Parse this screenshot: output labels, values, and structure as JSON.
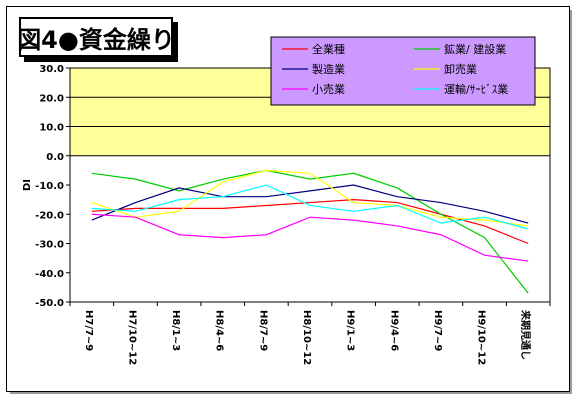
{
  "title": "図4●資金繰り",
  "chart_data": {
    "type": "line",
    "title": "図4●資金繰り",
    "ylabel": "DI",
    "ylim": [
      -50,
      30
    ],
    "yticks": [
      "30.0",
      "20.0",
      "10.0",
      "0.0",
      "-10.0",
      "-20.0",
      "-30.0",
      "-40.0",
      "-50.0"
    ],
    "ytick_values": [
      30,
      20,
      10,
      0,
      -10,
      -20,
      -30,
      -40,
      -50
    ],
    "categories": [
      "H7/7~9",
      "H7/10~12",
      "H8/1~3",
      "H8/4~6",
      "H8/7~9",
      "H8/10~12",
      "H9/1~3",
      "H9/4~6",
      "H9/7~9",
      "H9/10~12",
      "来期見通し"
    ],
    "grid": "horizontal-above-zero",
    "legend_position": "top",
    "series": [
      {
        "name": "全業種",
        "color": "#ff0000",
        "values": [
          -19,
          -18,
          -18,
          -18,
          -17,
          -16,
          -15,
          -16,
          -20,
          -24,
          -30
        ]
      },
      {
        "name": "鉱業/ 建設業",
        "color": "#00cc00",
        "values": [
          -6,
          -8,
          -12,
          -8,
          -5,
          -8,
          -6,
          -11,
          -20,
          -28,
          -47
        ]
      },
      {
        "name": "製造業",
        "color": "#000080",
        "values": [
          -22,
          -16,
          -11,
          -14,
          -14,
          -12,
          -10,
          -14,
          -16,
          -19,
          -23
        ]
      },
      {
        "name": "卸売業",
        "color": "#ffff00",
        "values": [
          -16,
          -21,
          -19,
          -9,
          -5,
          -6,
          -16,
          -17,
          -21,
          -22,
          -24
        ]
      },
      {
        "name": "小売業",
        "color": "#ff00ff",
        "values": [
          -20,
          -21,
          -27,
          -28,
          -27,
          -21,
          -22,
          -24,
          -27,
          -34,
          -36
        ]
      },
      {
        "name": "運輸/ｻｰﾋﾞｽ業",
        "color": "#00ffff",
        "values": [
          -18,
          -19,
          -15,
          -14,
          -10,
          -17,
          -19,
          -17,
          -23,
          -21,
          -25
        ]
      }
    ]
  }
}
